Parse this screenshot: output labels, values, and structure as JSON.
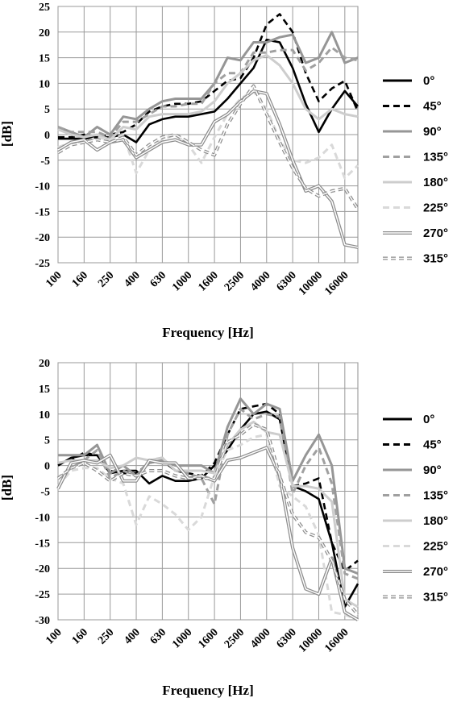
{
  "chart_data": [
    {
      "type": "line",
      "title": "",
      "xlabel": "Frequency [Hz]",
      "ylabel": "[dB]",
      "ylim": [
        -25,
        25
      ],
      "y_ticks": [
        -25,
        -20,
        -15,
        -10,
        -5,
        0,
        5,
        10,
        15,
        20,
        25
      ],
      "grid": true,
      "legend_position": "right",
      "categories": [
        "100",
        "125",
        "160",
        "200",
        "250",
        "315",
        "400",
        "500",
        "630",
        "800",
        "1000",
        "1250",
        "1600",
        "2000",
        "2500",
        "3150",
        "4000",
        "5000",
        "6300",
        "8000",
        "10000",
        "12500",
        "16000",
        "20000"
      ],
      "x_tick_labels": [
        "100",
        "160",
        "250",
        "400",
        "630",
        "1000",
        "1600",
        "2500",
        "4000",
        "6300",
        "10000",
        "16000"
      ],
      "series": [
        {
          "name": "0°",
          "values": [
            -0.8,
            -0.8,
            -0.8,
            -0.5,
            -0.5,
            0.0,
            -1.5,
            2.0,
            3.0,
            3.5,
            3.5,
            4.0,
            4.5,
            7.0,
            10.0,
            13.0,
            18.5,
            18.0,
            13.0,
            6.0,
            0.5,
            5.0,
            8.5,
            5.5
          ]
        },
        {
          "name": "45°",
          "values": [
            -0.5,
            -0.5,
            0.0,
            -0.5,
            0.0,
            0.5,
            2.0,
            4.5,
            5.5,
            6.0,
            6.0,
            6.5,
            8.5,
            10.5,
            11.0,
            15.0,
            21.5,
            23.5,
            20.0,
            12.0,
            6.5,
            9.0,
            10.5,
            4.5
          ]
        },
        {
          "name": "90°",
          "values": [
            1.5,
            0.5,
            -0.5,
            1.5,
            0.0,
            3.5,
            3.0,
            5.0,
            6.5,
            7.0,
            7.0,
            7.0,
            10.0,
            15.0,
            14.5,
            18.0,
            18.0,
            19.0,
            19.5,
            14.0,
            15.0,
            20.0,
            14.0,
            15.0
          ]
        },
        {
          "name": "135°",
          "values": [
            1.5,
            0.5,
            0.5,
            0.5,
            -0.5,
            2.5,
            2.5,
            4.0,
            5.5,
            5.5,
            6.0,
            6.0,
            10.0,
            12.0,
            12.0,
            16.0,
            16.0,
            16.5,
            16.5,
            12.5,
            14.0,
            17.0,
            15.0,
            14.5
          ]
        },
        {
          "name": "180°",
          "values": [
            1.0,
            0.0,
            -0.5,
            0.0,
            -1.0,
            1.5,
            1.0,
            3.5,
            4.0,
            4.0,
            4.0,
            4.5,
            6.5,
            10.0,
            12.0,
            14.5,
            15.5,
            13.5,
            10.0,
            5.0,
            3.0,
            5.0,
            4.0,
            3.5
          ]
        },
        {
          "name": "225°",
          "values": [
            -2.5,
            -1.5,
            -1.5,
            -0.5,
            -1.0,
            0.0,
            -7.5,
            -3.0,
            -1.0,
            0.0,
            -2.0,
            -5.5,
            -0.5,
            4.0,
            7.0,
            8.5,
            5.0,
            -1.0,
            -5.0,
            -5.5,
            -4.5,
            -2.0,
            -8.5,
            -6.0
          ]
        },
        {
          "name": "270°",
          "values": [
            -3.0,
            -1.5,
            -1.0,
            -3.0,
            -1.5,
            -1.0,
            -4.5,
            -3.0,
            -1.5,
            -1.0,
            -2.0,
            -2.0,
            2.5,
            4.0,
            6.5,
            8.5,
            8.0,
            2.0,
            -5.0,
            -11.0,
            -10.0,
            -13.0,
            -21.5,
            -22.0
          ]
        },
        {
          "name": "315°",
          "values": [
            -3.5,
            -2.0,
            -1.5,
            -1.0,
            -1.5,
            -0.5,
            -4.0,
            -2.0,
            -0.5,
            0.0,
            -1.5,
            -3.0,
            -4.0,
            2.0,
            6.0,
            9.5,
            4.0,
            -1.5,
            -6.5,
            -10.5,
            -12.0,
            -11.0,
            -10.5,
            -14.5
          ]
        }
      ]
    },
    {
      "type": "line",
      "title": "",
      "xlabel": "Frequency [Hz]",
      "ylabel": "[dB]",
      "ylim": [
        -30,
        20
      ],
      "y_ticks": [
        -30,
        -25,
        -20,
        -15,
        -10,
        -5,
        0,
        5,
        10,
        15,
        20
      ],
      "grid": true,
      "legend_position": "right",
      "categories": [
        "100",
        "125",
        "160",
        "200",
        "250",
        "315",
        "400",
        "500",
        "630",
        "800",
        "1000",
        "1250",
        "1600",
        "2000",
        "2500",
        "3150",
        "4000",
        "5000",
        "6300",
        "8000",
        "10000",
        "12500",
        "16000",
        "20000"
      ],
      "x_tick_labels": [
        "100",
        "160",
        "250",
        "400",
        "630",
        "1000",
        "1600",
        "2500",
        "4000",
        "6300",
        "10000",
        "16000"
      ],
      "series": [
        {
          "name": "0°",
          "values": [
            0.0,
            1.5,
            2.0,
            2.0,
            -1.5,
            -1.0,
            -1.0,
            -3.5,
            -2.0,
            -3.0,
            -3.0,
            -2.5,
            0.0,
            3.0,
            7.0,
            10.0,
            10.5,
            9.0,
            -4.0,
            -5.0,
            -6.5,
            -15.0,
            -27.5,
            -23.0
          ]
        },
        {
          "name": "45°",
          "values": [
            0.5,
            1.0,
            2.5,
            2.0,
            -1.0,
            -1.5,
            -1.5,
            0.5,
            1.0,
            -1.0,
            -1.5,
            -2.0,
            0.5,
            6.0,
            11.0,
            11.5,
            12.0,
            10.0,
            -4.0,
            -3.5,
            -2.5,
            -15.0,
            -20.5,
            -18.5
          ]
        },
        {
          "name": "90°",
          "values": [
            2.0,
            2.0,
            2.0,
            4.0,
            -1.5,
            0.0,
            -2.0,
            0.5,
            1.0,
            0.0,
            0.0,
            0.0,
            -1.5,
            7.5,
            13.0,
            10.0,
            12.0,
            11.0,
            -3.0,
            2.0,
            6.0,
            0.0,
            -20.0,
            -21.0
          ]
        },
        {
          "name": "135°",
          "values": [
            -2.5,
            -0.5,
            1.0,
            3.0,
            -2.5,
            -1.0,
            -2.0,
            1.0,
            1.5,
            -1.0,
            -1.5,
            -2.5,
            -7.5,
            6.0,
            11.0,
            9.0,
            10.0,
            9.5,
            -5.5,
            0.0,
            3.5,
            -3.5,
            -21.0,
            -22.0
          ]
        },
        {
          "name": "180°",
          "values": [
            0.5,
            1.0,
            1.0,
            1.0,
            -0.5,
            0.0,
            1.5,
            1.0,
            1.5,
            -1.0,
            -1.0,
            -1.0,
            -1.5,
            4.0,
            7.0,
            8.5,
            6.5,
            6.0,
            -4.0,
            -4.0,
            -4.5,
            -7.0,
            -26.0,
            -27.5
          ]
        },
        {
          "name": "225°",
          "values": [
            -4.0,
            -1.0,
            -0.5,
            -0.5,
            -2.5,
            -3.5,
            -11.5,
            -6.0,
            -7.5,
            -9.5,
            -12.5,
            -10.0,
            -2.0,
            3.0,
            4.0,
            5.5,
            6.0,
            -4.0,
            -6.0,
            -8.0,
            -13.5,
            -28.5,
            -29.0,
            -30.0
          ]
        },
        {
          "name": "270°",
          "values": [
            -4.5,
            0.5,
            1.0,
            0.5,
            2.0,
            -3.0,
            -3.0,
            1.0,
            0.5,
            0.5,
            -2.5,
            -2.0,
            -3.0,
            1.0,
            1.5,
            2.5,
            3.5,
            -2.0,
            -16.0,
            -24.0,
            -25.0,
            -18.0,
            -28.5,
            -30.0
          ]
        },
        {
          "name": "315°",
          "values": [
            -2.5,
            -0.5,
            0.5,
            -1.0,
            -3.0,
            -1.5,
            -2.0,
            -1.0,
            -1.0,
            -2.0,
            -2.5,
            -2.5,
            -2.5,
            4.5,
            6.0,
            8.0,
            7.0,
            -2.0,
            -9.5,
            -13.0,
            -14.0,
            -18.5,
            -26.0,
            -29.0
          ]
        }
      ]
    }
  ],
  "legend_styles": {
    "0°": {
      "color": "#000000",
      "dash": "",
      "double": false
    },
    "45°": {
      "color": "#000000",
      "dash": "8 5",
      "double": false
    },
    "90°": {
      "color": "#969696",
      "dash": "",
      "double": false
    },
    "135°": {
      "color": "#a0a0a0",
      "dash": "8 5",
      "double": false
    },
    "180°": {
      "color": "#cdcdcd",
      "dash": "",
      "double": false
    },
    "225°": {
      "color": "#d9d9d9",
      "dash": "8 5",
      "double": false
    },
    "270°": {
      "color": "#8c8c8c",
      "dash": "",
      "double": true
    },
    "315°": {
      "color": "#8c8c8c",
      "dash": "6 4",
      "double": true
    }
  }
}
